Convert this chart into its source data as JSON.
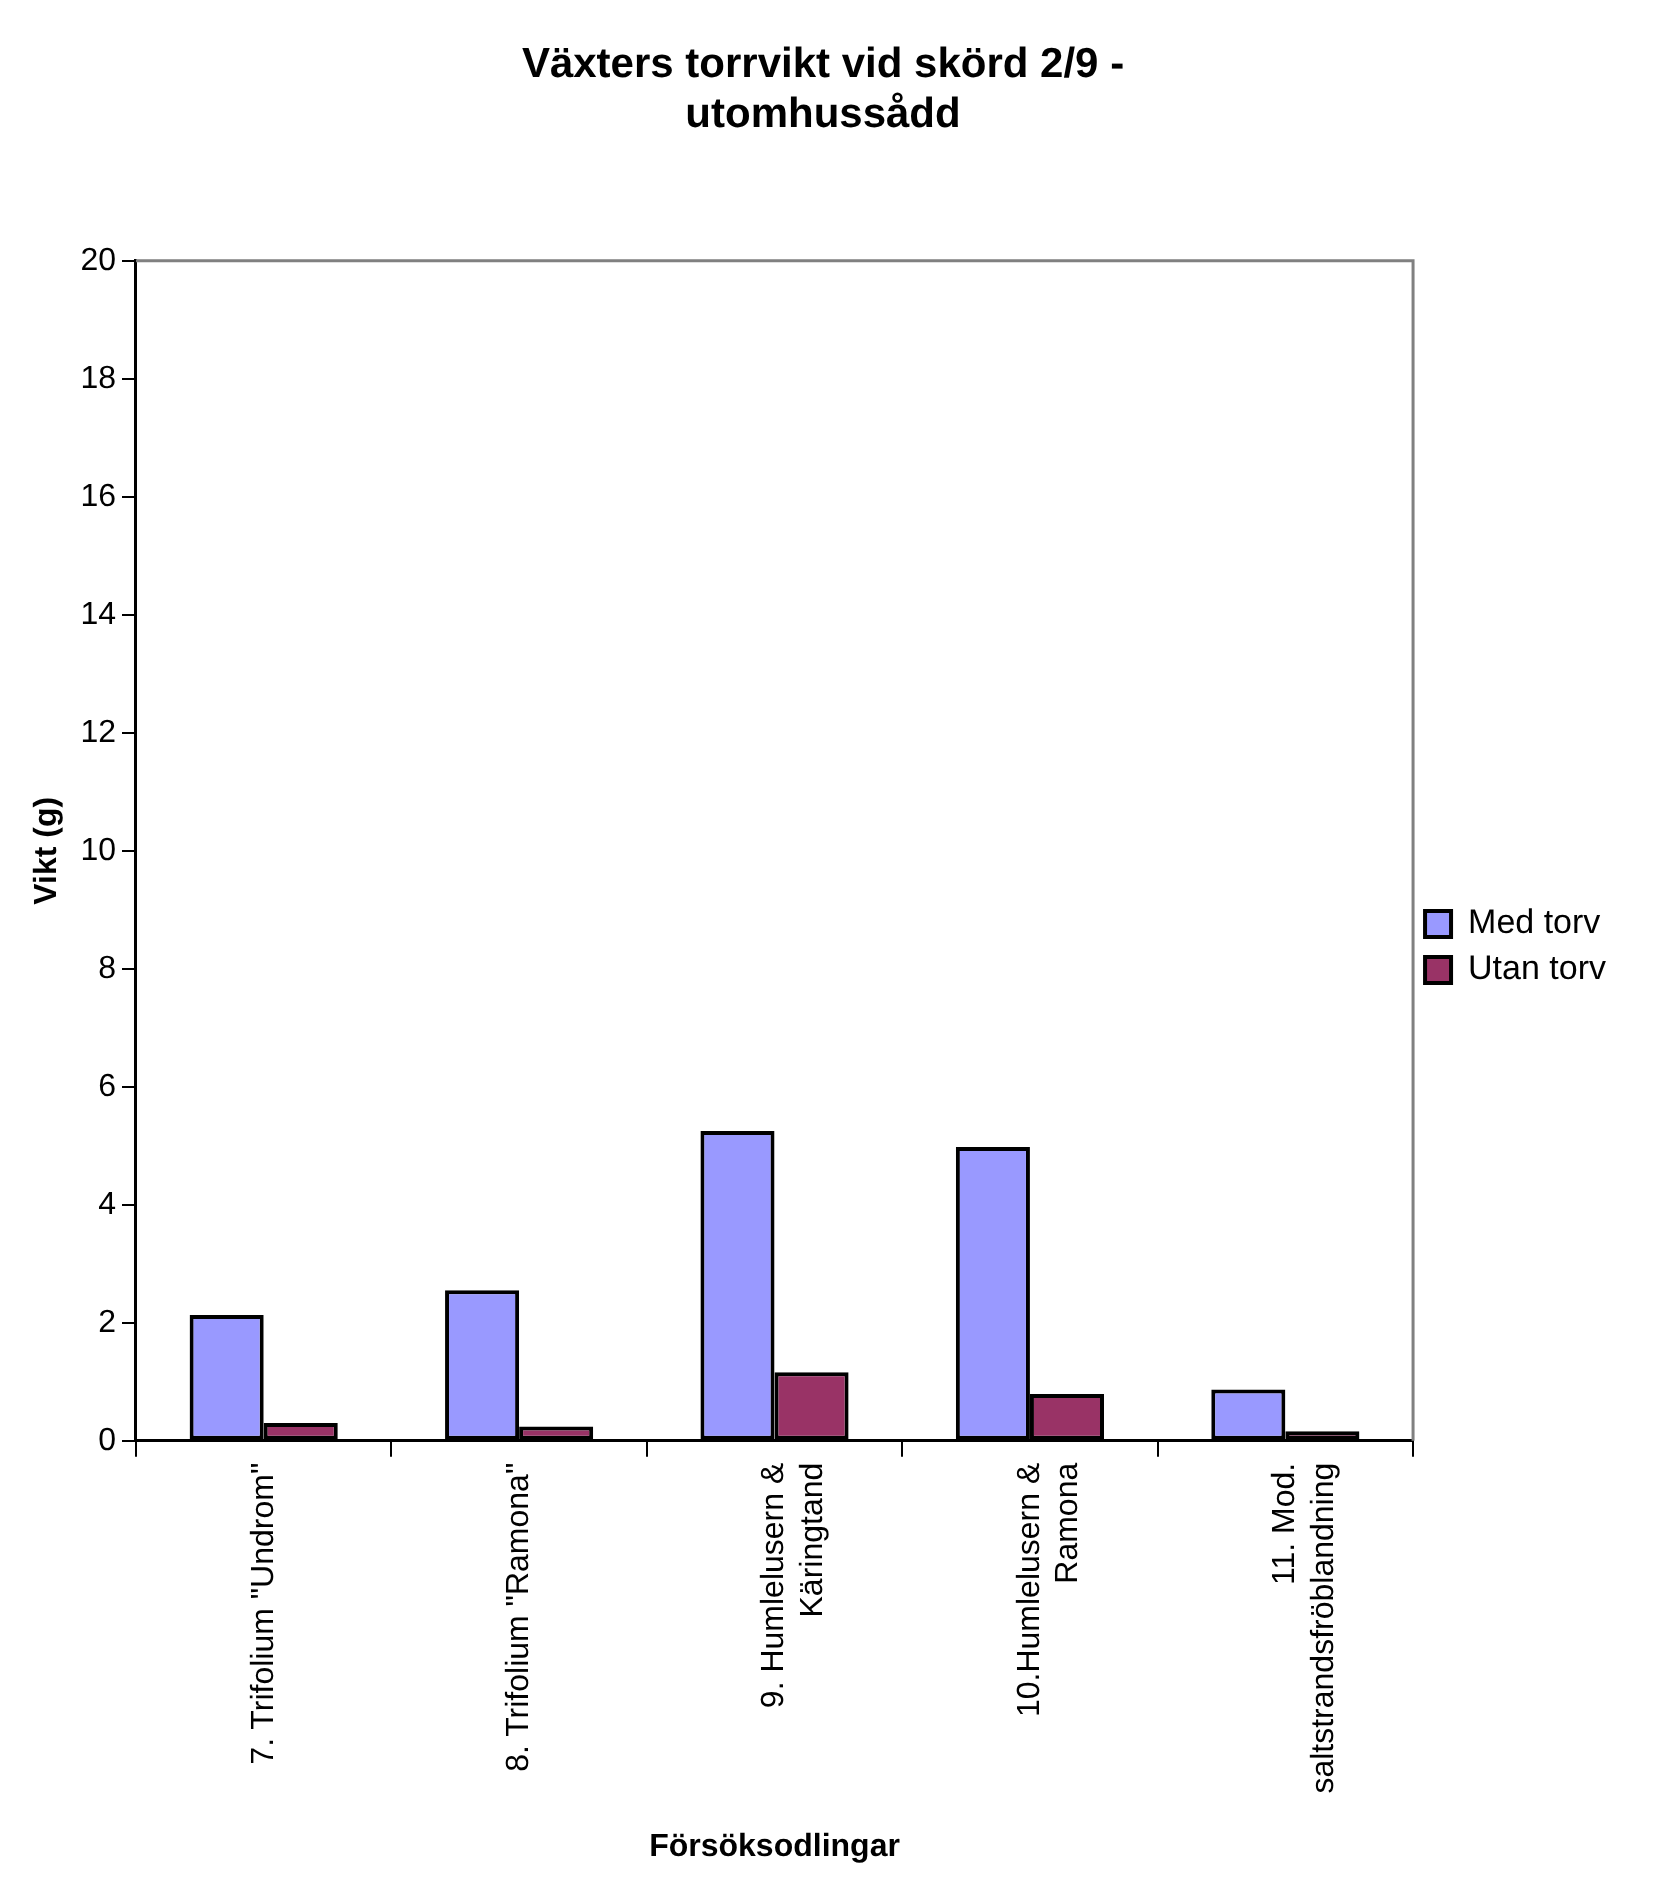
{
  "chart_data": {
    "type": "bar",
    "title": "Växters torrvikt vid skörd 2/9 - utomhussådd",
    "xlabel": "Försöksodlingar",
    "ylabel": "Vikt (g)",
    "categories": [
      "7. Trifolium \"Undrom\"",
      "8. Trifolium \"Ramona\"",
      "9. Humlelusern & Käringtand",
      "10.Humlelusern & Ramona",
      "11. Mod. saltstrandsfröblandning"
    ],
    "series": [
      {
        "name": "Med torv",
        "color": "#9999ff",
        "values": [
          2.13,
          2.55,
          5.25,
          4.98,
          0.87
        ]
      },
      {
        "name": "Utan torv",
        "color": "#993366",
        "values": [
          0.3,
          0.24,
          1.16,
          0.79,
          0.16
        ]
      }
    ],
    "ylim": [
      0,
      20
    ],
    "yticks": [
      0,
      2,
      4,
      6,
      8,
      10,
      12,
      14,
      16,
      18,
      20
    ],
    "grid": false,
    "legend": "right"
  }
}
